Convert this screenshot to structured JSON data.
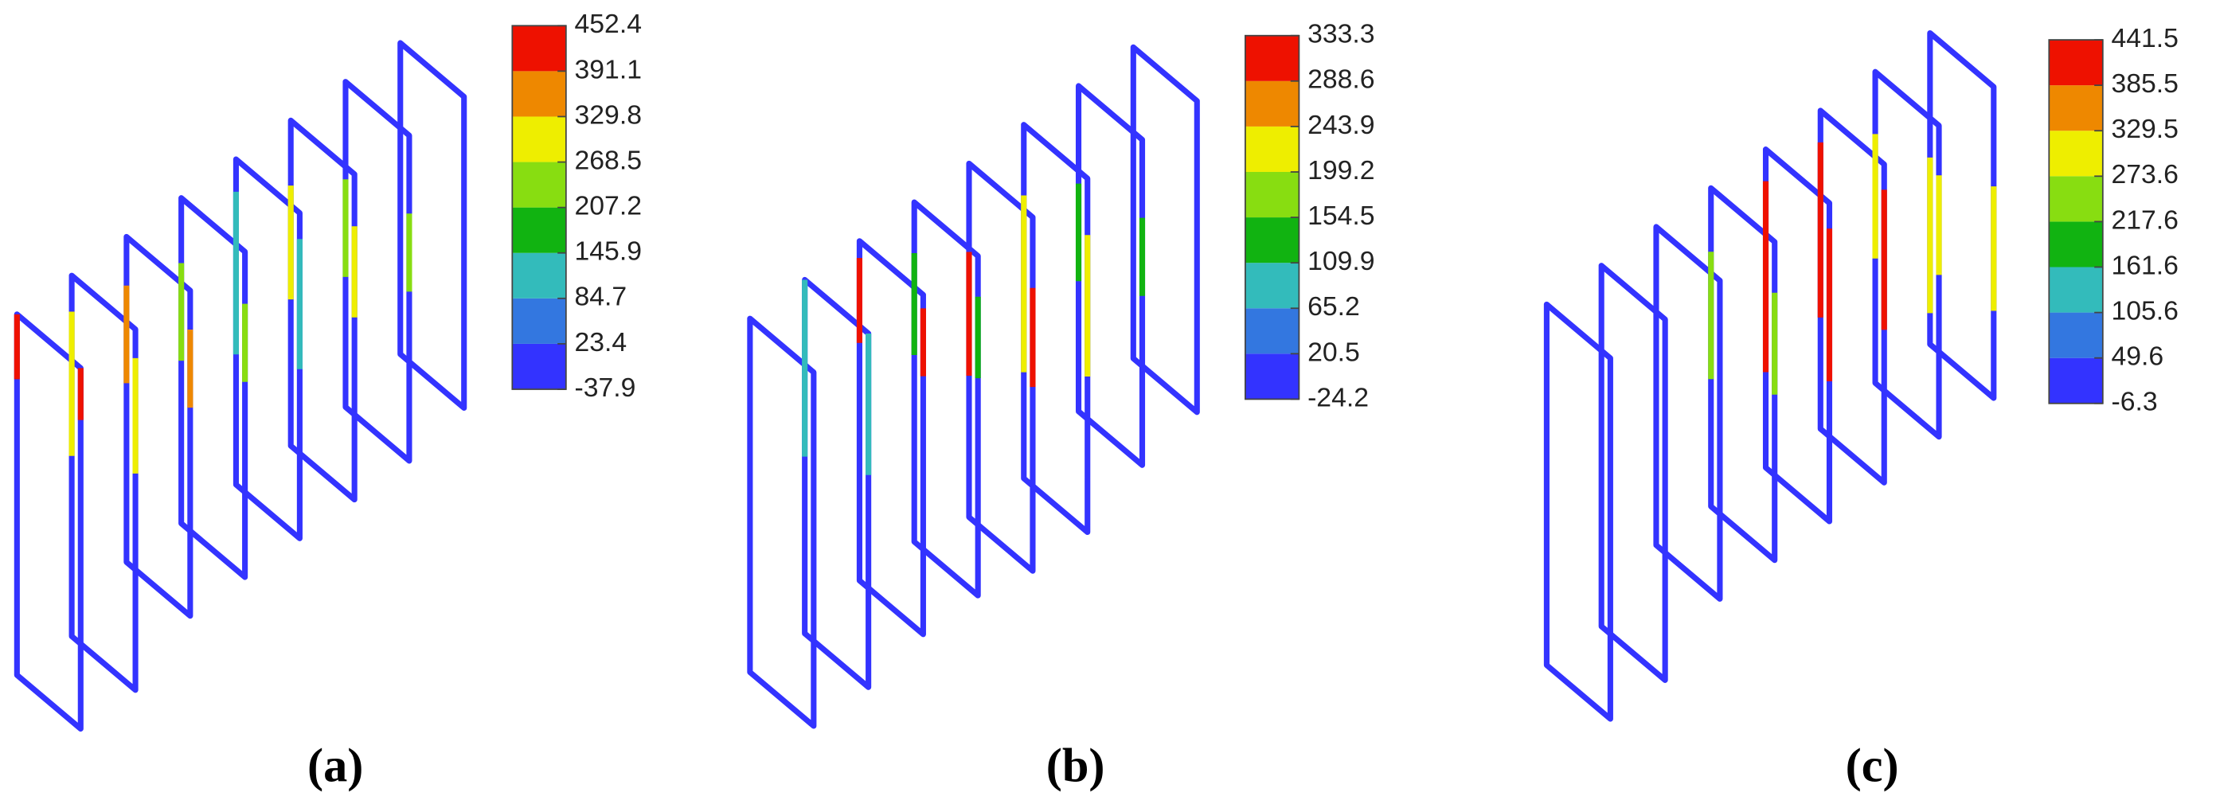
{
  "panels": [
    {
      "label": "(a)",
      "colorbar": [
        "452.4",
        "391.1",
        "329.8",
        "268.5",
        "207.2",
        "145.9",
        "84.7",
        "23.4",
        "-37.9"
      ]
    },
    {
      "label": "(b)",
      "colorbar": [
        "333.3",
        "288.6",
        "243.9",
        "199.2",
        "154.5",
        "109.9",
        "65.2",
        "20.5",
        "-24.2"
      ]
    },
    {
      "label": "(c)",
      "colorbar": [
        "441.5",
        "385.5",
        "329.5",
        "273.6",
        "217.6",
        "161.6",
        "105.6",
        "49.6",
        "-6.3"
      ]
    }
  ]
}
